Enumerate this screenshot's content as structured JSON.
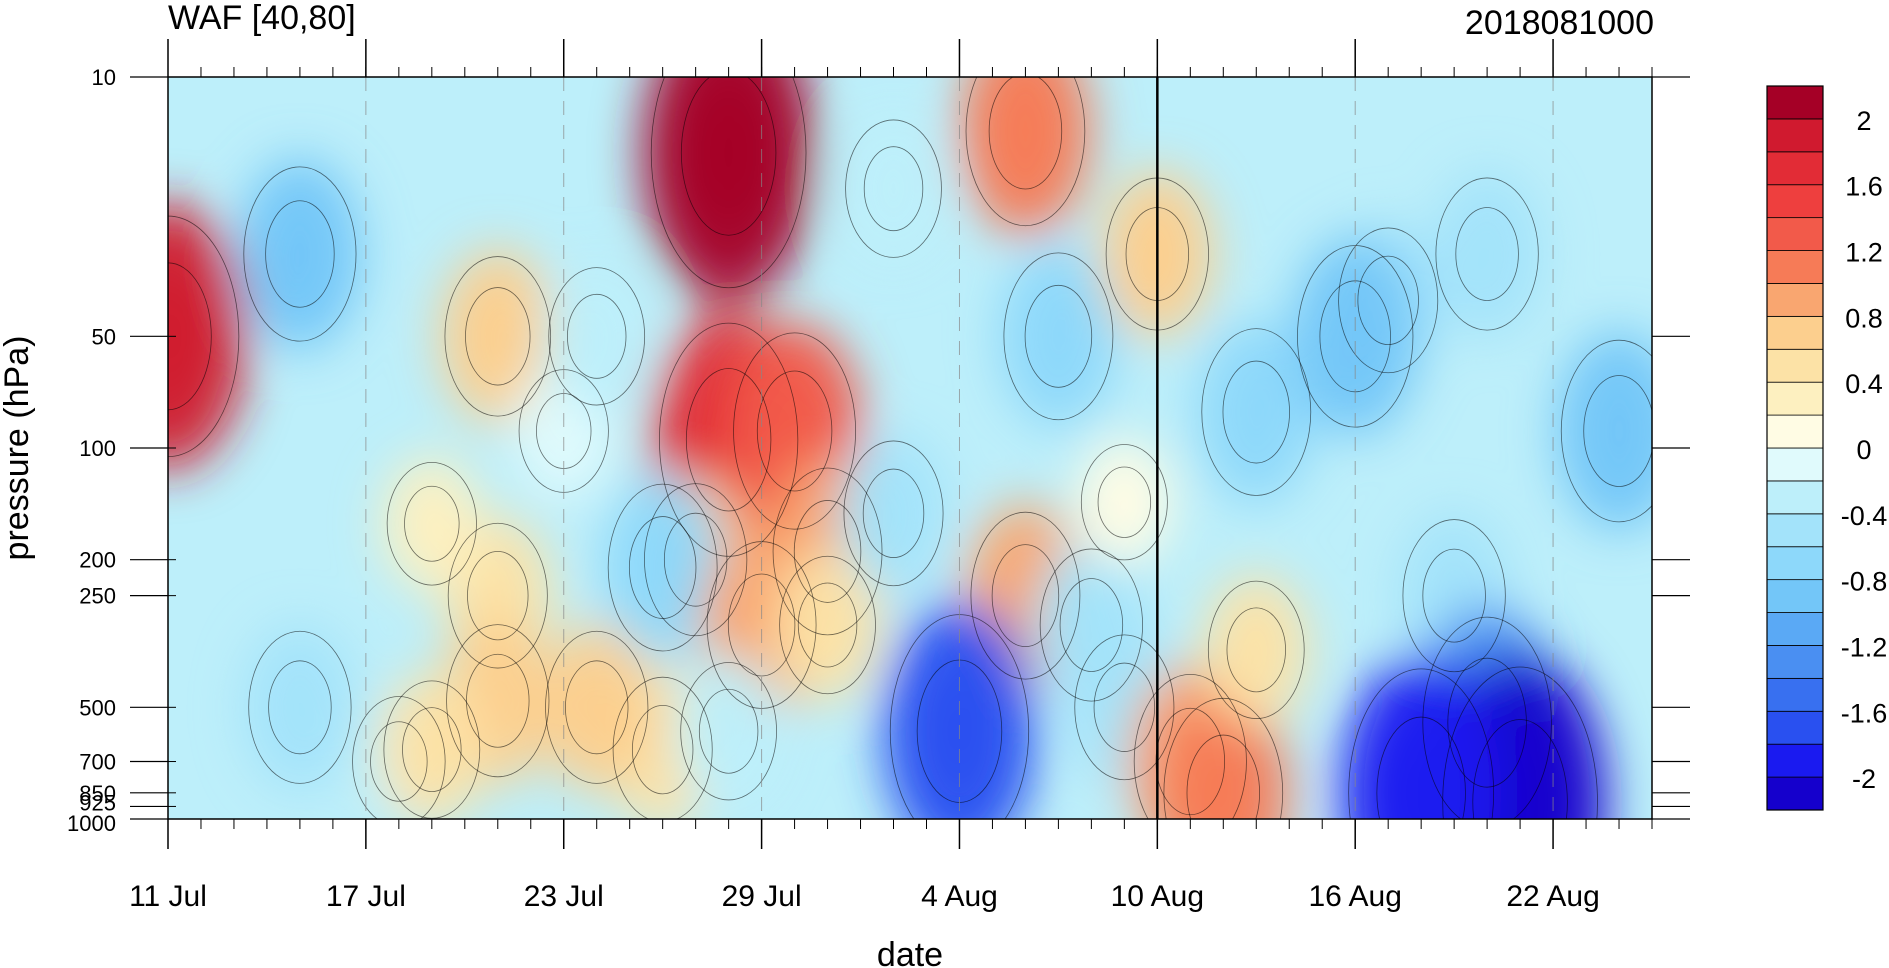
{
  "chart_data": {
    "type": "heatmap",
    "title": "WAF [40,80]",
    "date_stamp": "2018081000",
    "xlabel": "date",
    "ylabel": "pressure (hPa)",
    "x_start": "2018-07-11",
    "x_end": "2018-08-25",
    "x_ticks": [
      {
        "date": "2018-07-11",
        "label": "11 Jul"
      },
      {
        "date": "2018-07-17",
        "label": "17 Jul"
      },
      {
        "date": "2018-07-23",
        "label": "23 Jul"
      },
      {
        "date": "2018-07-29",
        "label": "29 Jul"
      },
      {
        "date": "2018-08-04",
        "label": "4 Aug"
      },
      {
        "date": "2018-08-10",
        "label": "10 Aug"
      },
      {
        "date": "2018-08-16",
        "label": "16 Aug"
      },
      {
        "date": "2018-08-22",
        "label": "22 Aug"
      }
    ],
    "analysis_date": "2018-08-10",
    "y_scale": "log",
    "y_reversed": true,
    "ylim": [
      1000,
      10
    ],
    "y_ticks": [
      {
        "value": 10,
        "label": "10"
      },
      {
        "value": 50,
        "label": "50"
      },
      {
        "value": 100,
        "label": "100"
      },
      {
        "value": 200,
        "label": "200"
      },
      {
        "value": 250,
        "label": "250"
      },
      {
        "value": 500,
        "label": "500"
      },
      {
        "value": 700,
        "label": "700"
      },
      {
        "value": 850,
        "label": "850"
      },
      {
        "value": 925,
        "label": "925"
      },
      {
        "value": 1000,
        "label": "1000"
      }
    ],
    "levels": [
      -2.2,
      -2.0,
      -1.8,
      -1.6,
      -1.4,
      -1.2,
      -1.0,
      -0.8,
      -0.6,
      -0.4,
      -0.2,
      0,
      0.2,
      0.4,
      0.6,
      0.8,
      1.0,
      1.2,
      1.4,
      1.6,
      1.8,
      2.0,
      2.2
    ],
    "colors": [
      "#1500cc",
      "#1a1af0",
      "#2950f0",
      "#3870f0",
      "#4a8ff2",
      "#5aa9f5",
      "#73c6f8",
      "#8dd8fa",
      "#a3e3fa",
      "#bdeffa",
      "#e0fafc",
      "#fffce4",
      "#fdf0c0",
      "#fce2a6",
      "#fccf8e",
      "#f9a670",
      "#f67b57",
      "#f25a4a",
      "#ee3f3e",
      "#e22c36",
      "#d01a2f",
      "#a50026"
    ],
    "colorbar_labels": [
      {
        "value": 2.0,
        "label": "2"
      },
      {
        "value": 1.6,
        "label": "1.6"
      },
      {
        "value": 1.2,
        "label": "1.2"
      },
      {
        "value": 0.8,
        "label": "0.8"
      },
      {
        "value": 0.4,
        "label": "0.4"
      },
      {
        "value": 0,
        "label": "0"
      },
      {
        "value": -0.4,
        "label": "-0.4"
      },
      {
        "value": -0.8,
        "label": "-0.8"
      },
      {
        "value": -1.2,
        "label": "-1.2"
      },
      {
        "value": -1.6,
        "label": "-1.6"
      },
      {
        "value": -2.0,
        "label": "-2"
      }
    ],
    "grid": "vertical dashed at date ticks",
    "features": [
      {
        "date": "2018-07-11",
        "p": 50,
        "value": 1.8
      },
      {
        "date": "2018-07-15",
        "p": 30,
        "value": -0.9
      },
      {
        "date": "2018-07-15",
        "p": 500,
        "value": -0.6
      },
      {
        "date": "2018-07-21",
        "p": 50,
        "value": 0.7
      },
      {
        "date": "2018-07-21",
        "p": 250,
        "value": 0.5
      },
      {
        "date": "2018-07-21",
        "p": 480,
        "value": 0.6
      },
      {
        "date": "2018-07-19",
        "p": 160,
        "value": 0.2
      },
      {
        "date": "2018-07-23",
        "p": 90,
        "value": -0.2
      },
      {
        "date": "2018-07-24",
        "p": 50,
        "value": -0.4
      },
      {
        "date": "2018-07-18",
        "p": 700,
        "value": -0.3
      },
      {
        "date": "2018-07-19",
        "p": 650,
        "value": 0.4
      },
      {
        "date": "2018-07-28",
        "p": 16,
        "value": 2.4
      },
      {
        "date": "2018-07-28",
        "p": 95,
        "value": 1.7
      },
      {
        "date": "2018-07-30",
        "p": 90,
        "value": 1.2
      },
      {
        "date": "2018-07-31",
        "p": 190,
        "value": 0.8
      },
      {
        "date": "2018-07-27",
        "p": 200,
        "value": 0.6
      },
      {
        "date": "2018-07-26",
        "p": 210,
        "value": -0.8
      },
      {
        "date": "2018-07-29",
        "p": 300,
        "value": 0.8
      },
      {
        "date": "2018-07-31",
        "p": 300,
        "value": 0.4
      },
      {
        "date": "2018-07-26",
        "p": 650,
        "value": 0.5
      },
      {
        "date": "2018-07-28",
        "p": 580,
        "value": -0.4
      },
      {
        "date": "2018-07-24",
        "p": 500,
        "value": 0.6
      },
      {
        "date": "2018-08-02",
        "p": 20,
        "value": -0.4
      },
      {
        "date": "2018-08-02",
        "p": 150,
        "value": -0.5
      },
      {
        "date": "2018-08-06",
        "p": 14,
        "value": 1.1
      },
      {
        "date": "2018-08-06",
        "p": 250,
        "value": 0.8
      },
      {
        "date": "2018-08-07",
        "p": 50,
        "value": -0.8
      },
      {
        "date": "2018-08-04",
        "p": 580,
        "value": -1.7
      },
      {
        "date": "2018-08-08",
        "p": 300,
        "value": -0.6
      },
      {
        "date": "2018-08-09",
        "p": 500,
        "value": -0.5
      },
      {
        "date": "2018-08-09",
        "p": 140,
        "value": 0.1
      },
      {
        "date": "2018-08-10",
        "p": 30,
        "value": 0.6
      },
      {
        "date": "2018-08-11",
        "p": 700,
        "value": 0.9
      },
      {
        "date": "2018-08-12",
        "p": 850,
        "value": 1.1
      },
      {
        "date": "2018-08-13",
        "p": 350,
        "value": 0.4
      },
      {
        "date": "2018-08-13",
        "p": 80,
        "value": -0.8
      },
      {
        "date": "2018-08-17",
        "p": 40,
        "value": -0.5
      },
      {
        "date": "2018-08-16",
        "p": 50,
        "value": -1.0
      },
      {
        "date": "2018-08-20",
        "p": 30,
        "value": -0.6
      },
      {
        "date": "2018-08-24",
        "p": 90,
        "value": -1.0
      },
      {
        "date": "2018-08-19",
        "p": 250,
        "value": -0.6
      },
      {
        "date": "2018-08-20",
        "p": 550,
        "value": -1.4
      },
      {
        "date": "2018-08-21",
        "p": 900,
        "value": -2.2
      },
      {
        "date": "2018-08-18",
        "p": 850,
        "value": -1.9
      }
    ]
  }
}
